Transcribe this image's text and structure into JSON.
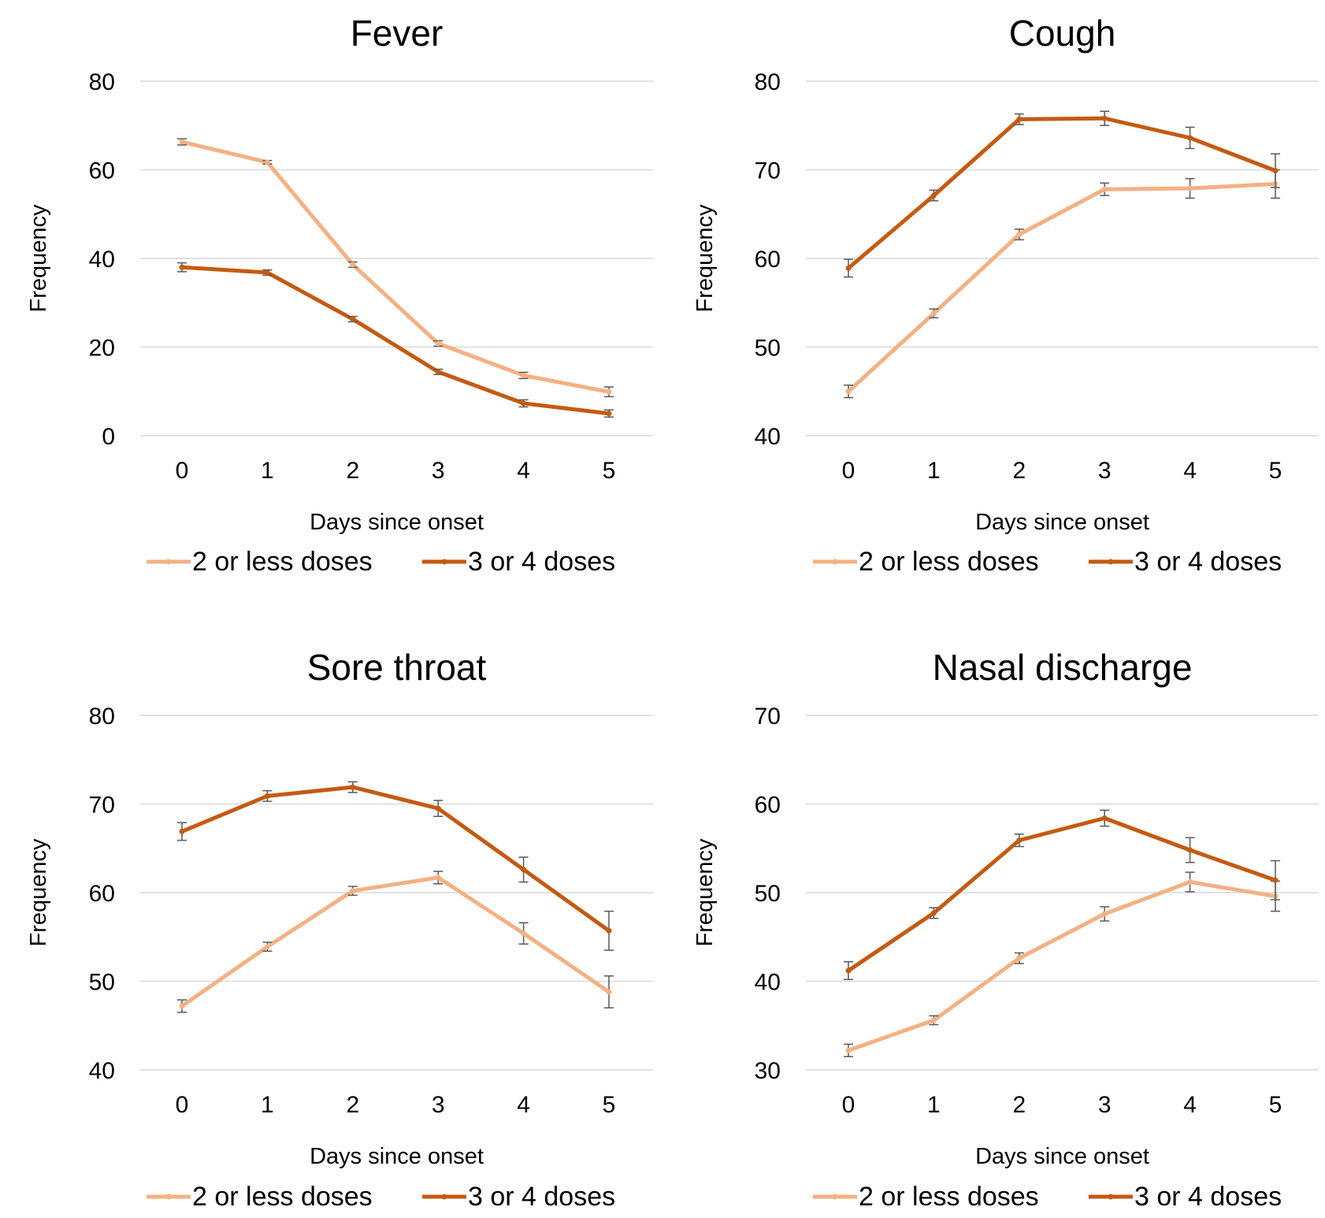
{
  "colors": {
    "series_light": "#f4b183",
    "series_dark": "#c55a11",
    "error_bar": "#595959",
    "grid": "#d9d9d9"
  },
  "chart_data": [
    {
      "type": "line",
      "title": "Fever",
      "xlabel": "Days since onset",
      "ylabel": "Frequency",
      "x": [
        0,
        1,
        2,
        3,
        4,
        5
      ],
      "ylim": [
        0,
        80
      ],
      "yticks": [
        0,
        20,
        40,
        60,
        80
      ],
      "grid": true,
      "legend_position": "bottom",
      "series": [
        {
          "name": "2 or less doses",
          "values": [
            66.3,
            61.7,
            38.6,
            20.8,
            13.6,
            9.9
          ],
          "error": [
            0.7,
            0.4,
            0.6,
            0.6,
            0.7,
            1.1
          ]
        },
        {
          "name": "3 or 4 doses",
          "values": [
            38.0,
            36.8,
            26.3,
            14.4,
            7.3,
            5.0
          ],
          "error": [
            1.0,
            0.6,
            0.6,
            0.6,
            0.8,
            0.8
          ]
        }
      ]
    },
    {
      "type": "line",
      "title": "Cough",
      "xlabel": "Days since onset",
      "ylabel": "Frequency",
      "x": [
        0,
        1,
        2,
        3,
        4,
        5
      ],
      "ylim": [
        40,
        80
      ],
      "yticks": [
        40,
        50,
        60,
        70,
        80
      ],
      "grid": true,
      "legend_position": "bottom",
      "series": [
        {
          "name": "2 or less doses",
          "values": [
            45.0,
            53.8,
            62.7,
            67.8,
            67.9,
            68.4
          ],
          "error": [
            0.7,
            0.5,
            0.6,
            0.7,
            1.1,
            1.6
          ]
        },
        {
          "name": "3 or 4 doses",
          "values": [
            58.9,
            67.1,
            75.7,
            75.8,
            73.6,
            69.9
          ],
          "error": [
            1.0,
            0.6,
            0.6,
            0.8,
            1.2,
            1.9
          ]
        }
      ]
    },
    {
      "type": "line",
      "title": "Sore throat",
      "xlabel": "Days since onset",
      "ylabel": "Frequency",
      "x": [
        0,
        1,
        2,
        3,
        4,
        5
      ],
      "ylim": [
        40,
        80
      ],
      "yticks": [
        40,
        50,
        60,
        70,
        80
      ],
      "grid": true,
      "legend_position": "bottom",
      "series": [
        {
          "name": "2 or less doses",
          "values": [
            47.2,
            53.9,
            60.2,
            61.7,
            55.4,
            48.8
          ],
          "error": [
            0.7,
            0.5,
            0.5,
            0.7,
            1.2,
            1.8
          ]
        },
        {
          "name": "3 or 4 doses",
          "values": [
            66.9,
            70.9,
            71.9,
            69.5,
            62.6,
            55.7
          ],
          "error": [
            1.0,
            0.6,
            0.6,
            0.9,
            1.4,
            2.2
          ]
        }
      ]
    },
    {
      "type": "line",
      "title": "Nasal discharge",
      "xlabel": "Days since onset",
      "ylabel": "Frequency",
      "x": [
        0,
        1,
        2,
        3,
        4,
        5
      ],
      "ylim": [
        30,
        70
      ],
      "yticks": [
        30,
        40,
        50,
        60,
        70
      ],
      "grid": true,
      "legend_position": "bottom",
      "series": [
        {
          "name": "2 or less doses",
          "values": [
            32.2,
            35.6,
            42.6,
            47.6,
            51.2,
            49.6
          ],
          "error": [
            0.7,
            0.5,
            0.6,
            0.8,
            1.1,
            1.7
          ]
        },
        {
          "name": "3 or 4 doses",
          "values": [
            41.2,
            47.7,
            55.9,
            58.4,
            54.8,
            51.4
          ],
          "error": [
            1.0,
            0.6,
            0.7,
            0.9,
            1.4,
            2.2
          ]
        }
      ]
    }
  ]
}
